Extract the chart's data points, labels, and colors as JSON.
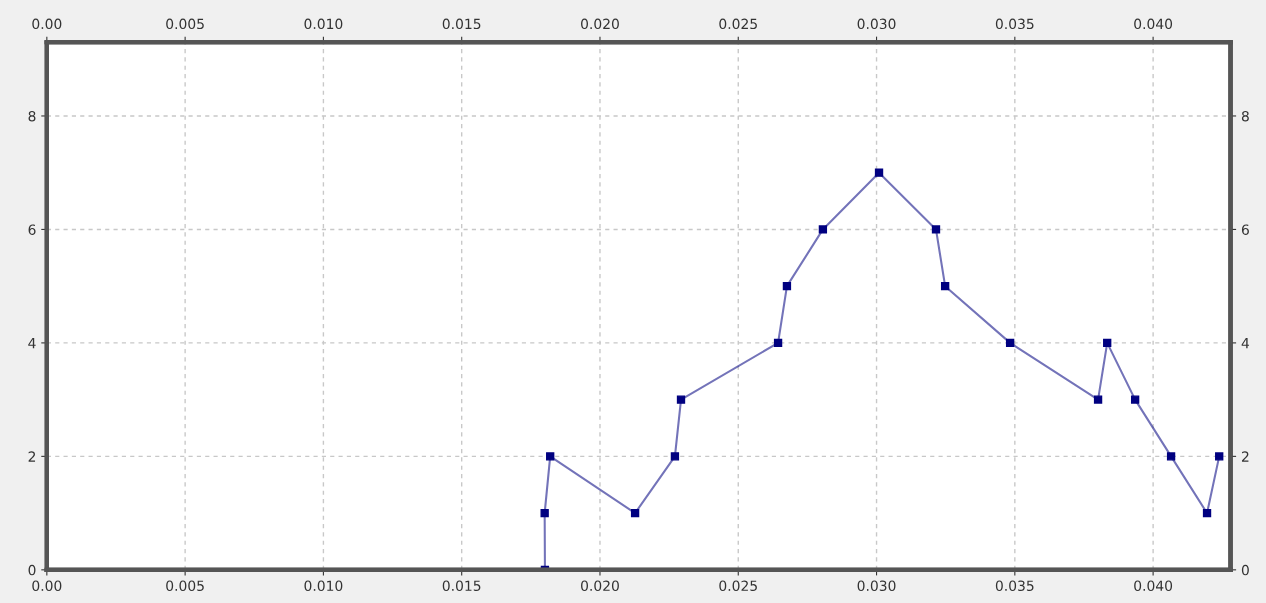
{
  "chart_data": {
    "type": "line",
    "series": [
      {
        "color": "#000080",
        "x": [
          0.01801,
          0.018,
          0.0182,
          0.02127,
          0.02271,
          0.02293,
          0.02644,
          0.02676,
          0.02806,
          0.03009,
          0.03215,
          0.03248,
          0.03483,
          0.03801,
          0.03834,
          0.03935,
          0.04065,
          0.04195,
          0.04239
        ],
        "values": [
          0,
          1,
          2,
          1,
          2,
          3,
          4,
          5,
          6,
          7,
          6,
          5,
          4,
          3,
          4,
          3,
          2,
          1,
          2
        ]
      }
    ],
    "xlim": [
      0,
      0.0428
    ],
    "ylim": [
      0,
      9.3
    ],
    "x2lim": [
      0,
      0.0428
    ],
    "y2lim": [
      0,
      9.3
    ],
    "xticks": [
      {
        "value": 0,
        "label": "0.00"
      },
      {
        "value": 0.005,
        "label": "0.005"
      },
      {
        "value": 0.01,
        "label": "0.010"
      },
      {
        "value": 0.015,
        "label": "0.015"
      },
      {
        "value": 0.02,
        "label": "0.020"
      },
      {
        "value": 0.025,
        "label": "0.025"
      },
      {
        "value": 0.03,
        "label": "0.030"
      },
      {
        "value": 0.035,
        "label": "0.035"
      },
      {
        "value": 0.04,
        "label": "0.040"
      }
    ],
    "x2ticks": [
      {
        "value": 0,
        "label": "0.00"
      },
      {
        "value": 0.005,
        "label": "0.005"
      },
      {
        "value": 0.01,
        "label": "0.010"
      },
      {
        "value": 0.015,
        "label": "0.015"
      },
      {
        "value": 0.02,
        "label": "0.020"
      },
      {
        "value": 0.025,
        "label": "0.025"
      },
      {
        "value": 0.03,
        "label": "0.030"
      },
      {
        "value": 0.035,
        "label": "0.035"
      },
      {
        "value": 0.04,
        "label": "0.040"
      }
    ],
    "yticks": [
      0,
      2,
      4,
      6,
      8
    ],
    "y2ticks": [
      0,
      2,
      4,
      6,
      8
    ],
    "grid": true,
    "marker": "square",
    "line_style": "solid",
    "legend": false
  }
}
